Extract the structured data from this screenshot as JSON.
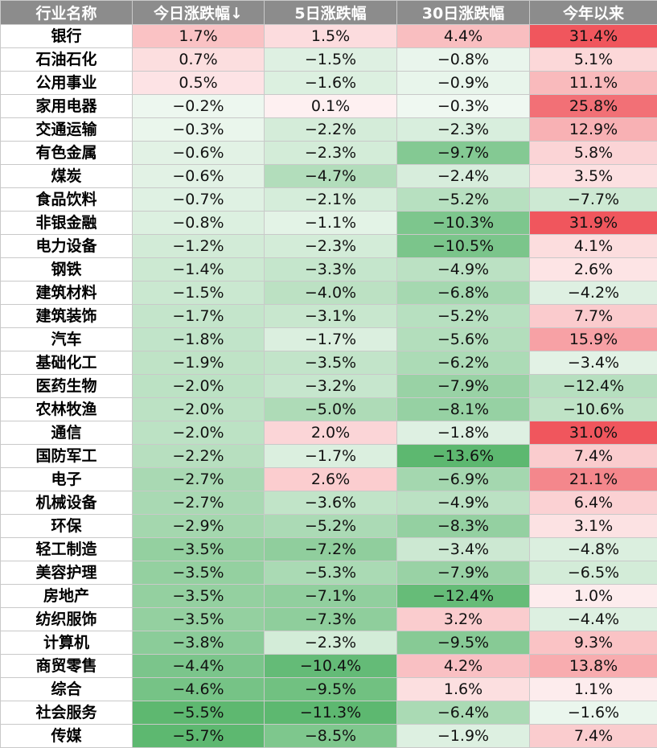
{
  "chart_data": {
    "type": "heatmap",
    "columns": [
      "行业名称",
      "今日涨跌幅↓",
      "5日涨跌幅",
      "30日涨跌幅",
      "今年以来"
    ],
    "color_scale": {
      "positive": "#f0565d",
      "negative": "#5db870",
      "neutral": "#ffffff"
    },
    "rows": [
      {
        "name": "银行",
        "values": [
          "1.7%",
          "1.5%",
          "4.4%",
          "31.4%"
        ],
        "numbers": [
          1.7,
          1.5,
          4.4,
          31.4
        ]
      },
      {
        "name": "石油石化",
        "values": [
          "0.7%",
          "−1.5%",
          "−0.8%",
          "5.1%"
        ],
        "numbers": [
          0.7,
          -1.5,
          -0.8,
          5.1
        ]
      },
      {
        "name": "公用事业",
        "values": [
          "0.5%",
          "−1.6%",
          "−0.9%",
          "11.1%"
        ],
        "numbers": [
          0.5,
          -1.6,
          -0.9,
          11.1
        ]
      },
      {
        "name": "家用电器",
        "values": [
          "−0.2%",
          "0.1%",
          "−0.3%",
          "25.8%"
        ],
        "numbers": [
          -0.2,
          0.1,
          -0.3,
          25.8
        ]
      },
      {
        "name": "交通运输",
        "values": [
          "−0.3%",
          "−2.2%",
          "−2.3%",
          "12.9%"
        ],
        "numbers": [
          -0.3,
          -2.2,
          -2.3,
          12.9
        ]
      },
      {
        "name": "有色金属",
        "values": [
          "−0.6%",
          "−2.3%",
          "−9.7%",
          "5.8%"
        ],
        "numbers": [
          -0.6,
          -2.3,
          -9.7,
          5.8
        ]
      },
      {
        "name": "煤炭",
        "values": [
          "−0.6%",
          "−4.7%",
          "−2.4%",
          "3.5%"
        ],
        "numbers": [
          -0.6,
          -4.7,
          -2.4,
          3.5
        ]
      },
      {
        "name": "食品饮料",
        "values": [
          "−0.7%",
          "−2.1%",
          "−5.2%",
          "−7.7%"
        ],
        "numbers": [
          -0.7,
          -2.1,
          -5.2,
          -7.7
        ]
      },
      {
        "name": "非银金融",
        "values": [
          "−0.8%",
          "−1.1%",
          "−10.3%",
          "31.9%"
        ],
        "numbers": [
          -0.8,
          -1.1,
          -10.3,
          31.9
        ]
      },
      {
        "name": "电力设备",
        "values": [
          "−1.2%",
          "−2.3%",
          "−10.5%",
          "4.1%"
        ],
        "numbers": [
          -1.2,
          -2.3,
          -10.5,
          4.1
        ]
      },
      {
        "name": "钢铁",
        "values": [
          "−1.4%",
          "−3.3%",
          "−4.9%",
          "2.6%"
        ],
        "numbers": [
          -1.4,
          -3.3,
          -4.9,
          2.6
        ]
      },
      {
        "name": "建筑材料",
        "values": [
          "−1.5%",
          "−4.0%",
          "−6.8%",
          "−4.2%"
        ],
        "numbers": [
          -1.5,
          -4.0,
          -6.8,
          -4.2
        ]
      },
      {
        "name": "建筑装饰",
        "values": [
          "−1.7%",
          "−3.1%",
          "−5.2%",
          "7.7%"
        ],
        "numbers": [
          -1.7,
          -3.1,
          -5.2,
          7.7
        ]
      },
      {
        "name": "汽车",
        "values": [
          "−1.8%",
          "−1.7%",
          "−5.6%",
          "15.9%"
        ],
        "numbers": [
          -1.8,
          -1.7,
          -5.6,
          15.9
        ]
      },
      {
        "name": "基础化工",
        "values": [
          "−1.9%",
          "−3.5%",
          "−6.2%",
          "−3.4%"
        ],
        "numbers": [
          -1.9,
          -3.5,
          -6.2,
          -3.4
        ]
      },
      {
        "name": "医药生物",
        "values": [
          "−2.0%",
          "−3.2%",
          "−7.9%",
          "−12.4%"
        ],
        "numbers": [
          -2.0,
          -3.2,
          -7.9,
          -12.4
        ]
      },
      {
        "name": "农林牧渔",
        "values": [
          "−2.0%",
          "−5.0%",
          "−8.1%",
          "−10.6%"
        ],
        "numbers": [
          -2.0,
          -5.0,
          -8.1,
          -10.6
        ]
      },
      {
        "name": "通信",
        "values": [
          "−2.0%",
          "2.0%",
          "−1.8%",
          "31.0%"
        ],
        "numbers": [
          -2.0,
          2.0,
          -1.8,
          31.0
        ]
      },
      {
        "name": "国防军工",
        "values": [
          "−2.2%",
          "−1.7%",
          "−13.6%",
          "7.4%"
        ],
        "numbers": [
          -2.2,
          -1.7,
          -13.6,
          7.4
        ]
      },
      {
        "name": "电子",
        "values": [
          "−2.7%",
          "2.6%",
          "−6.9%",
          "21.1%"
        ],
        "numbers": [
          -2.7,
          2.6,
          -6.9,
          21.1
        ]
      },
      {
        "name": "机械设备",
        "values": [
          "−2.7%",
          "−3.6%",
          "−4.9%",
          "6.4%"
        ],
        "numbers": [
          -2.7,
          -3.6,
          -4.9,
          6.4
        ]
      },
      {
        "name": "环保",
        "values": [
          "−2.9%",
          "−5.2%",
          "−8.3%",
          "3.1%"
        ],
        "numbers": [
          -2.9,
          -5.2,
          -8.3,
          3.1
        ]
      },
      {
        "name": "轻工制造",
        "values": [
          "−3.5%",
          "−7.2%",
          "−3.4%",
          "−4.8%"
        ],
        "numbers": [
          -3.5,
          -7.2,
          -3.4,
          -4.8
        ]
      },
      {
        "name": "美容护理",
        "values": [
          "−3.5%",
          "−5.3%",
          "−7.9%",
          "−6.5%"
        ],
        "numbers": [
          -3.5,
          -5.3,
          -7.9,
          -6.5
        ]
      },
      {
        "name": "房地产",
        "values": [
          "−3.5%",
          "−7.1%",
          "−12.4%",
          "1.0%"
        ],
        "numbers": [
          -3.5,
          -7.1,
          -12.4,
          1.0
        ]
      },
      {
        "name": "纺织服饰",
        "values": [
          "−3.5%",
          "−7.3%",
          "3.2%",
          "−4.4%"
        ],
        "numbers": [
          -3.5,
          -7.3,
          3.2,
          -4.4
        ]
      },
      {
        "name": "计算机",
        "values": [
          "−3.8%",
          "−2.3%",
          "−9.5%",
          "9.3%"
        ],
        "numbers": [
          -3.8,
          -2.3,
          -9.5,
          9.3
        ]
      },
      {
        "name": "商贸零售",
        "values": [
          "−4.4%",
          "−10.4%",
          "4.2%",
          "13.8%"
        ],
        "numbers": [
          -4.4,
          -10.4,
          4.2,
          13.8
        ]
      },
      {
        "name": "综合",
        "values": [
          "−4.6%",
          "−9.5%",
          "1.6%",
          "1.1%"
        ],
        "numbers": [
          -4.6,
          -9.5,
          1.6,
          1.1
        ]
      },
      {
        "name": "社会服务",
        "values": [
          "−5.5%",
          "−11.3%",
          "−6.4%",
          "−1.6%"
        ],
        "numbers": [
          -5.5,
          -11.3,
          -6.4,
          -1.6
        ]
      },
      {
        "name": "传媒",
        "values": [
          "−5.7%",
          "−8.5%",
          "−1.9%",
          "7.4%"
        ],
        "numbers": [
          -5.7,
          -8.5,
          -1.9,
          7.4
        ]
      }
    ]
  }
}
